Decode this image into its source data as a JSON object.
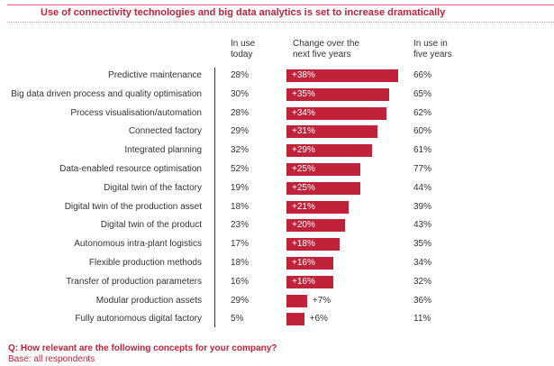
{
  "title": "Use of connectivity technologies and big data analytics is set to increase dramatically",
  "colors": {
    "bar": "#c0223a",
    "accent": "#c0223a"
  },
  "chart_data": {
    "type": "bar",
    "orientation": "horizontal",
    "columns": [
      "In use today",
      "Change over the next five years",
      "In use in five years"
    ],
    "headers": {
      "today": "In use\ntoday",
      "change": "Change over the\nnext five years",
      "future": "In use in\nfive years"
    },
    "categories": [
      "Predictive maintenance",
      "Big data driven process and quality optimisation",
      "Process visualisation/automation",
      "Connected factory",
      "Integrated planning",
      "Data-enabled resource optimisation",
      "Digital twin of the factory",
      "Digital twin of the production asset",
      "Digital twin of the product",
      "Autonomous intra-plant logistics",
      "Flexible production methods",
      "Transfer of production parameters",
      "Modular production assets",
      "Fully autonomous digital factory"
    ],
    "today": [
      "28%",
      "30%",
      "28%",
      "29%",
      "32%",
      "52%",
      "19%",
      "18%",
      "23%",
      "17%",
      "18%",
      "16%",
      "29%",
      "5%"
    ],
    "change": [
      38,
      35,
      34,
      31,
      29,
      25,
      25,
      21,
      20,
      18,
      16,
      16,
      7,
      6
    ],
    "change_labels": [
      "+38%",
      "+35%",
      "+34%",
      "+31%",
      "+29%",
      "+25%",
      "+25%",
      "+21%",
      "+20%",
      "+18%",
      "+16%",
      "+16%",
      "+7%",
      "+6%"
    ],
    "future": [
      "66%",
      "65%",
      "62%",
      "60%",
      "61%",
      "77%",
      "44%",
      "39%",
      "43%",
      "35%",
      "34%",
      "32%",
      "36%",
      "11%"
    ]
  },
  "footer": {
    "question": "Q: How relevant are the following concepts for your company?",
    "base": "Base: all respondents"
  }
}
